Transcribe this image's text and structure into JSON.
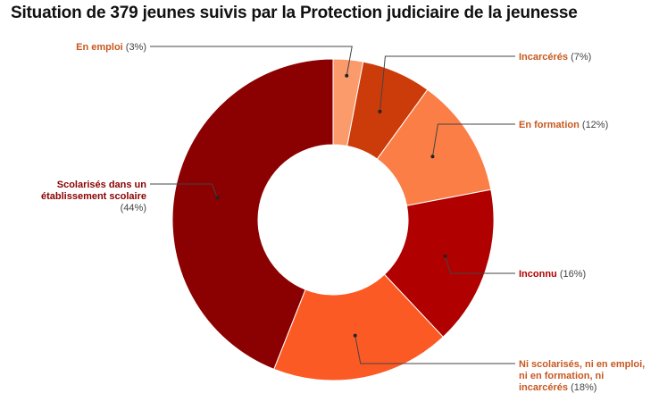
{
  "title": "Situation de 379 jeunes suivis par la Protection judiciaire de la jeunesse",
  "chart_data": {
    "type": "pie",
    "donut": true,
    "categories": [
      "En emploi",
      "Incarcérés",
      "En formation",
      "Inconnu",
      "Ni scolarisés, ni en emploi, ni en formation, ni incarcérés",
      "Scolarisés dans un établissement scolaire"
    ],
    "values": [
      3,
      7,
      12,
      16,
      18,
      44
    ],
    "percent_labels": [
      "(3%)",
      "(7%)",
      "(12%)",
      "(16%)",
      "(18%)",
      "(44%)"
    ],
    "colors": [
      "#fb9a6a",
      "#cc3b0a",
      "#fb7e46",
      "#b00000",
      "#fc5a25",
      "#8b0000"
    ],
    "label_colors": [
      "#c8571f",
      "#c8571f",
      "#c8571f",
      "#b00000",
      "#c8571f",
      "#8b0000"
    ]
  }
}
